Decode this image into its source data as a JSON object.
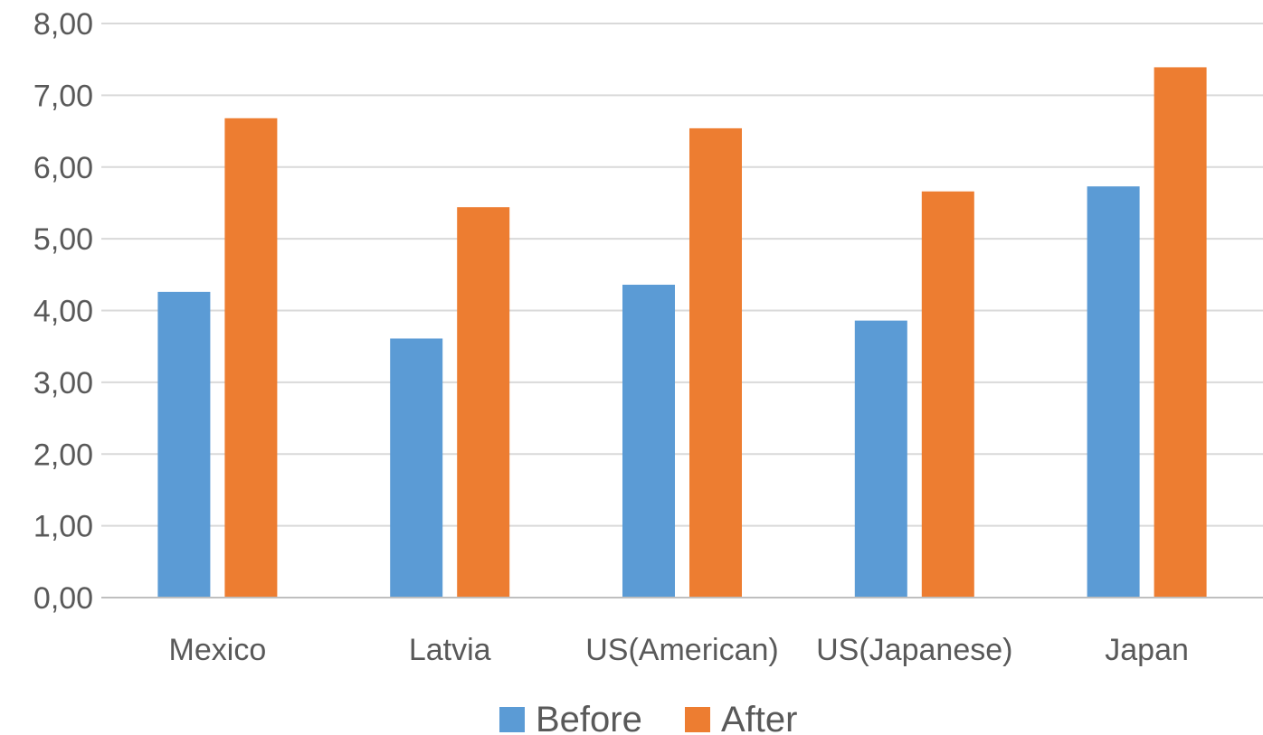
{
  "chart_data": {
    "type": "bar",
    "categories": [
      "Mexico",
      "Latvia",
      "US(American)",
      "US(Japanese)",
      "Japan"
    ],
    "series": [
      {
        "name": "Before",
        "color": "#5b9bd5",
        "values": [
          4.26,
          3.61,
          4.36,
          3.86,
          5.73
        ]
      },
      {
        "name": "After",
        "color": "#ed7d31",
        "values": [
          6.68,
          5.44,
          6.54,
          5.66,
          7.39
        ]
      }
    ],
    "ylim": [
      0,
      8
    ],
    "yticks": [
      "0,00",
      "1,00",
      "2,00",
      "3,00",
      "4,00",
      "5,00",
      "6,00",
      "7,00",
      "8,00"
    ],
    "grid": true,
    "legend_position": "bottom",
    "title": "",
    "xlabel": "",
    "ylabel": ""
  }
}
